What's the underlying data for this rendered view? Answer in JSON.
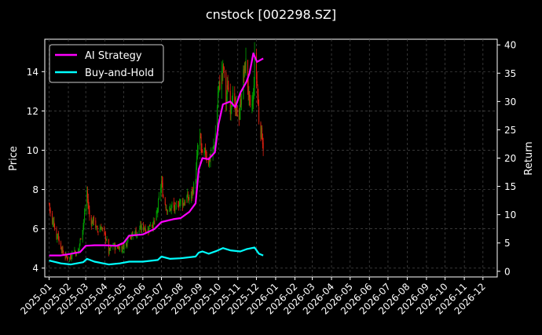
{
  "chart_data": {
    "type": "line",
    "title": "cnstock [002298.SZ]",
    "ylabel_left": "Price",
    "ylabel_right": "Return",
    "ylim_left": [
      3.55,
      15.65
    ],
    "ylim_right": [
      -1,
      41
    ],
    "xlim": [
      "2024-12-25",
      "2026-12-24"
    ],
    "grid": true,
    "grid_style": "dashed",
    "legend_position": "top-left",
    "left_ticks": [
      4,
      6,
      8,
      10,
      12,
      14
    ],
    "right_ticks": [
      0,
      5,
      10,
      15,
      20,
      25,
      30,
      35,
      40
    ],
    "x_ticks": [
      "2025-01",
      "2025-02",
      "2025-03",
      "2025-04",
      "2025-05",
      "2025-06",
      "2025-07",
      "2025-08",
      "2025-09",
      "2025-10",
      "2025-11",
      "2025-12",
      "2026-01",
      "2026-02",
      "2026-03",
      "2026-04",
      "2026-05",
      "2026-06",
      "2026-07",
      "2026-08",
      "2026-09",
      "2026-10",
      "2026-11",
      "2026-12"
    ],
    "candles": {
      "up_color": "#00a000",
      "down_color": "#e02010",
      "price_path": [
        [
          "2025-01-01",
          7.3
        ],
        [
          "2025-01-03",
          6.8
        ],
        [
          "2025-01-06",
          6.2
        ],
        [
          "2025-01-08",
          6.5
        ],
        [
          "2025-01-10",
          6.0
        ],
        [
          "2025-01-13",
          5.6
        ],
        [
          "2025-01-15",
          5.8
        ],
        [
          "2025-01-17",
          5.3
        ],
        [
          "2025-01-21",
          5.0
        ],
        [
          "2025-01-24",
          4.7
        ],
        [
          "2025-01-28",
          4.6
        ],
        [
          "2025-02-04",
          4.5
        ],
        [
          "2025-02-07",
          4.8
        ],
        [
          "2025-02-11",
          4.9
        ],
        [
          "2025-02-14",
          4.7
        ],
        [
          "2025-02-18",
          5.0
        ],
        [
          "2025-02-21",
          5.6
        ],
        [
          "2025-02-25",
          6.2
        ],
        [
          "2025-02-28",
          7.0
        ],
        [
          "2025-03-03",
          7.9
        ],
        [
          "2025-03-05",
          7.2
        ],
        [
          "2025-03-07",
          6.6
        ],
        [
          "2025-03-11",
          6.3
        ],
        [
          "2025-03-14",
          6.5
        ],
        [
          "2025-03-18",
          6.0
        ],
        [
          "2025-03-21",
          5.9
        ],
        [
          "2025-03-26",
          6.1
        ],
        [
          "2025-03-31",
          5.7
        ],
        [
          "2025-04-03",
          5.5
        ],
        [
          "2025-04-07",
          4.8
        ],
        [
          "2025-04-10",
          5.0
        ],
        [
          "2025-04-15",
          5.2
        ],
        [
          "2025-04-18",
          5.0
        ],
        [
          "2025-04-23",
          5.1
        ],
        [
          "2025-04-28",
          5.0
        ],
        [
          "2025-05-06",
          5.3
        ],
        [
          "2025-05-09",
          5.8
        ],
        [
          "2025-05-14",
          5.6
        ],
        [
          "2025-05-19",
          5.9
        ],
        [
          "2025-05-22",
          5.7
        ],
        [
          "2025-05-27",
          6.0
        ],
        [
          "2025-06-03",
          6.1
        ],
        [
          "2025-06-09",
          5.9
        ],
        [
          "2025-06-13",
          6.3
        ],
        [
          "2025-06-18",
          6.2
        ],
        [
          "2025-06-24",
          6.8
        ],
        [
          "2025-06-27",
          7.5
        ],
        [
          "2025-07-01",
          8.4
        ],
        [
          "2025-07-04",
          7.6
        ],
        [
          "2025-07-09",
          7.1
        ],
        [
          "2025-07-14",
          6.9
        ],
        [
          "2025-07-18",
          7.2
        ],
        [
          "2025-07-23",
          7.0
        ],
        [
          "2025-07-28",
          7.3
        ],
        [
          "2025-08-01",
          7.4
        ],
        [
          "2025-08-06",
          7.3
        ],
        [
          "2025-08-11",
          7.6
        ],
        [
          "2025-08-15",
          7.5
        ],
        [
          "2025-08-20",
          7.9
        ],
        [
          "2025-08-25",
          8.5
        ],
        [
          "2025-08-28",
          10.0
        ],
        [
          "2025-09-02",
          10.6
        ],
        [
          "2025-09-05",
          9.6
        ],
        [
          "2025-09-10",
          9.9
        ],
        [
          "2025-09-15",
          9.4
        ],
        [
          "2025-09-19",
          9.8
        ],
        [
          "2025-09-24",
          10.2
        ],
        [
          "2025-09-28",
          11.5
        ],
        [
          "2025-09-30",
          13.0
        ],
        [
          "2025-10-09",
          14.2
        ],
        [
          "2025-10-13",
          12.5
        ],
        [
          "2025-10-16",
          13.3
        ],
        [
          "2025-10-20",
          12.2
        ],
        [
          "2025-10-23",
          12.8
        ],
        [
          "2025-10-28",
          12.0
        ],
        [
          "2025-11-03",
          11.8
        ],
        [
          "2025-11-06",
          12.6
        ],
        [
          "2025-11-10",
          13.8
        ],
        [
          "2025-11-14",
          14.4
        ],
        [
          "2025-11-18",
          13.0
        ],
        [
          "2025-11-21",
          12.0
        ],
        [
          "2025-11-26",
          12.6
        ],
        [
          "2025-11-28",
          14.6
        ],
        [
          "2025-12-02",
          13.4
        ],
        [
          "2025-12-05",
          11.6
        ],
        [
          "2025-12-08",
          11.0
        ],
        [
          "2025-12-10",
          10.8
        ],
        [
          "2025-12-12",
          10.2
        ]
      ]
    },
    "series": [
      {
        "name": "AI Strategy",
        "color": "#ff00ff",
        "axis": "right",
        "points": [
          [
            "2025-01-01",
            2.8
          ],
          [
            "2025-01-20",
            2.8
          ],
          [
            "2025-02-01",
            3.0
          ],
          [
            "2025-02-20",
            3.4
          ],
          [
            "2025-03-01",
            4.5
          ],
          [
            "2025-03-15",
            4.6
          ],
          [
            "2025-04-01",
            4.6
          ],
          [
            "2025-04-20",
            4.5
          ],
          [
            "2025-05-01",
            5.0
          ],
          [
            "2025-05-10",
            6.3
          ],
          [
            "2025-06-01",
            6.5
          ],
          [
            "2025-06-20",
            7.5
          ],
          [
            "2025-07-01",
            8.7
          ],
          [
            "2025-07-20",
            9.2
          ],
          [
            "2025-08-01",
            9.4
          ],
          [
            "2025-08-15",
            10.5
          ],
          [
            "2025-08-25",
            12.0
          ],
          [
            "2025-08-30",
            18.0
          ],
          [
            "2025-09-05",
            20.0
          ],
          [
            "2025-09-15",
            19.8
          ],
          [
            "2025-09-25",
            21.0
          ],
          [
            "2025-10-01",
            26.0
          ],
          [
            "2025-10-08",
            29.5
          ],
          [
            "2025-10-20",
            30.0
          ],
          [
            "2025-10-28",
            29.0
          ],
          [
            "2025-11-05",
            31.5
          ],
          [
            "2025-11-15",
            33.5
          ],
          [
            "2025-11-20",
            35.0
          ],
          [
            "2025-11-26",
            38.5
          ],
          [
            "2025-12-02",
            37.0
          ],
          [
            "2025-12-12",
            37.6
          ]
        ]
      },
      {
        "name": "Buy-and-Hold",
        "color": "#00ffff",
        "axis": "right",
        "points": [
          [
            "2025-01-01",
            1.9
          ],
          [
            "2025-01-20",
            1.4
          ],
          [
            "2025-02-05",
            1.2
          ],
          [
            "2025-02-25",
            1.6
          ],
          [
            "2025-03-03",
            2.2
          ],
          [
            "2025-03-15",
            1.7
          ],
          [
            "2025-04-07",
            1.2
          ],
          [
            "2025-04-25",
            1.4
          ],
          [
            "2025-05-10",
            1.7
          ],
          [
            "2025-06-01",
            1.7
          ],
          [
            "2025-06-25",
            2.0
          ],
          [
            "2025-07-01",
            2.6
          ],
          [
            "2025-07-15",
            2.2
          ],
          [
            "2025-08-01",
            2.3
          ],
          [
            "2025-08-25",
            2.6
          ],
          [
            "2025-08-30",
            3.3
          ],
          [
            "2025-09-05",
            3.5
          ],
          [
            "2025-09-15",
            3.1
          ],
          [
            "2025-09-28",
            3.6
          ],
          [
            "2025-10-08",
            4.1
          ],
          [
            "2025-10-20",
            3.7
          ],
          [
            "2025-11-05",
            3.5
          ],
          [
            "2025-11-15",
            3.9
          ],
          [
            "2025-11-28",
            4.2
          ],
          [
            "2025-12-05",
            3.1
          ],
          [
            "2025-12-12",
            2.8
          ]
        ]
      }
    ]
  }
}
